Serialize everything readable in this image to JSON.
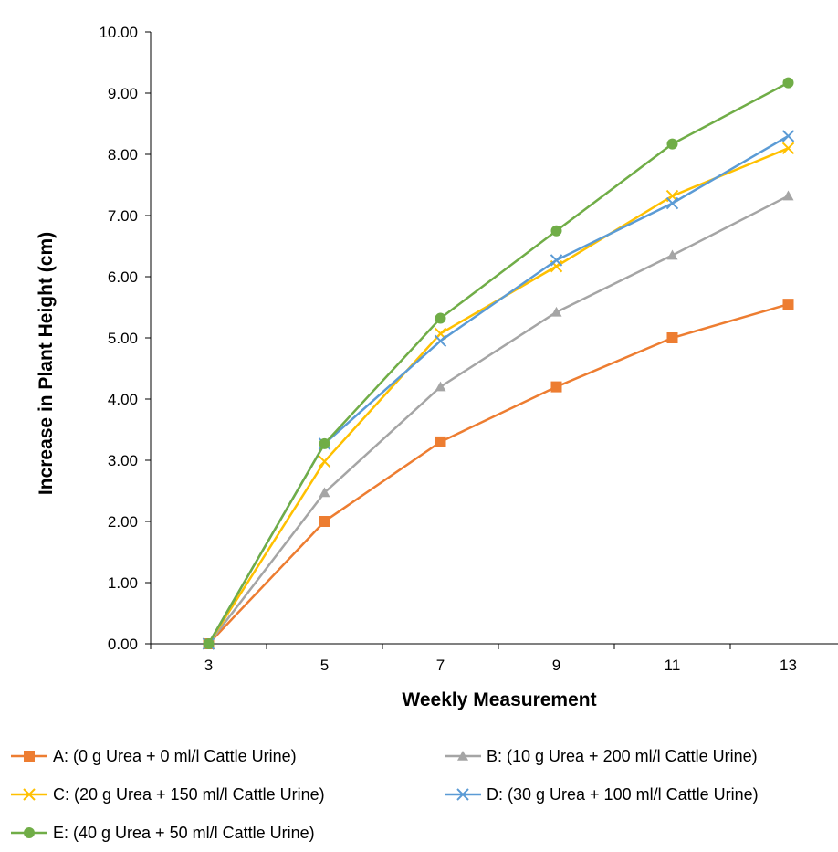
{
  "chart_data": {
    "type": "line",
    "title": "",
    "xlabel": "Weekly Measurement",
    "ylabel": "Increase in Plant Height (cm)",
    "x": [
      3,
      5,
      7,
      9,
      11,
      13
    ],
    "x_tick_labels": [
      "3",
      "5",
      "7",
      "9",
      "11",
      "13"
    ],
    "ylim": [
      0,
      10
    ],
    "y_tick_labels": [
      "0.00",
      "1.00",
      "2.00",
      "3.00",
      "4.00",
      "5.00",
      "6.00",
      "7.00",
      "8.00",
      "9.00",
      "10.00"
    ],
    "grid": false,
    "legend_position": "bottom",
    "series": [
      {
        "name": "A: (0 g Urea + 0 ml/l Cattle Urine)",
        "marker": "square",
        "color": "#ED7D31",
        "values": [
          0.0,
          2.0,
          3.3,
          4.2,
          5.0,
          5.55
        ]
      },
      {
        "name": "B: (10 g Urea + 200 ml/l Cattle Urine)",
        "marker": "triangle",
        "color": "#A5A5A5",
        "values": [
          0.0,
          2.47,
          4.2,
          5.42,
          6.35,
          7.32
        ]
      },
      {
        "name": "C: (20 g Urea + 150 ml/l Cattle Urine)",
        "marker": "x",
        "color": "#FFC000",
        "values": [
          0.0,
          2.98,
          5.07,
          6.17,
          7.32,
          8.1
        ]
      },
      {
        "name": "D: (30 g Urea + 100 ml/l Cattle Urine)",
        "marker": "x",
        "color": "#5B9BD5",
        "values": [
          0.0,
          3.27,
          4.95,
          6.27,
          7.2,
          8.3
        ]
      },
      {
        "name": "E: (40 g Urea + 50 ml/l Cattle Urine)",
        "marker": "circle",
        "color": "#70AD47",
        "values": [
          0.0,
          3.27,
          5.32,
          6.75,
          8.17,
          9.17
        ]
      }
    ]
  }
}
